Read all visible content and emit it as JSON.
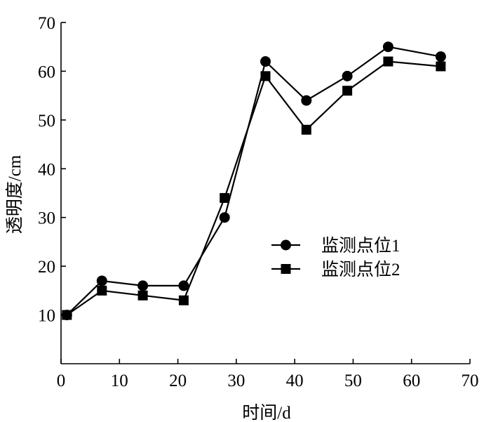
{
  "chart_data": {
    "type": "line",
    "title": "",
    "xlabel": "时间/d",
    "ylabel": "透明度/cm",
    "xlim": [
      0,
      70
    ],
    "ylim": [
      0,
      70
    ],
    "xticks": [
      0,
      10,
      20,
      30,
      40,
      50,
      60,
      70
    ],
    "yticks": [
      10,
      20,
      30,
      40,
      50,
      60,
      70
    ],
    "grid": false,
    "legend_position": "center-right",
    "series": [
      {
        "name": "监测点位1",
        "marker": "circle",
        "color": "#000000",
        "x": [
          1,
          7,
          14,
          21,
          28,
          35,
          42,
          49,
          56,
          65
        ],
        "y": [
          10,
          17,
          16,
          16,
          30,
          62,
          54,
          59,
          65,
          63
        ]
      },
      {
        "name": "监测点位2",
        "marker": "square",
        "color": "#000000",
        "x": [
          1,
          7,
          14,
          21,
          28,
          35,
          42,
          49,
          56,
          65
        ],
        "y": [
          10,
          15,
          14,
          13,
          34,
          59,
          48,
          56,
          62,
          61
        ]
      }
    ]
  }
}
